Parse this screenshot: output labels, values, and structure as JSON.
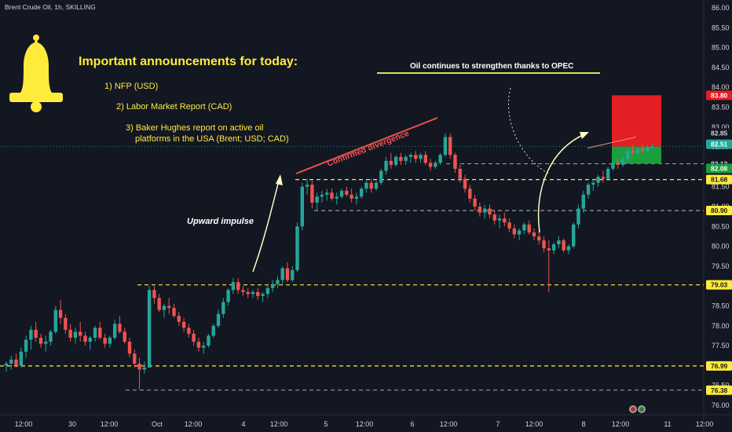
{
  "header": {
    "symbol_title": "Brent Crude Oil, 1h, SKILLING"
  },
  "announcements": {
    "heading": "Important announcements for today:",
    "items": [
      "1) NFP (USD)",
      "2) Labor Market Report (CAD)",
      "3) Baker Hughes report on active oil",
      "platforms in the USA (Brent; USD; CAD)"
    ]
  },
  "annotations": {
    "opec_note": "Oil continues to strengthen thanks to OPEC",
    "divergence_label": "Confirmed divergence",
    "impulse_label": "Upward impulse"
  },
  "colors": {
    "background": "#131722",
    "bull": "#26a69a",
    "bear": "#ef5350",
    "level_line": "#ffeb3b",
    "stop_zone": "#e31e24",
    "target_zone": "#1b9e3e",
    "bell": "#ffeb3b"
  },
  "chart_data": {
    "type": "candlestick",
    "title": "Brent Crude Oil, 1h, SKILLING",
    "ylim": [
      75.85,
      86.1
    ],
    "y_ticks": [
      "86.00",
      "85.50",
      "85.00",
      "84.50",
      "84.00",
      "83.50",
      "83.00",
      "82.50",
      "82.00",
      "81.50",
      "81.00",
      "80.50",
      "80.00",
      "79.50",
      "79.00",
      "78.50",
      "78.00",
      "77.50",
      "77.00",
      "76.50",
      "76.00"
    ],
    "x_ticks": [
      "12:00",
      "30",
      "12:00",
      "Oct",
      "12:00",
      "4",
      "12:00",
      "5",
      "12:00",
      "6",
      "12:00",
      "7",
      "12:00",
      "8",
      "12:00",
      "11",
      "12:00"
    ],
    "levels": [
      {
        "price": 82.08,
        "label": "82.08",
        "style": "dashed"
      },
      {
        "price": 81.68,
        "label": "81.68",
        "style": "dashed"
      },
      {
        "price": 80.9,
        "label": "80.90",
        "style": "dashed"
      },
      {
        "price": 79.03,
        "label": "79.03",
        "style": "dashed"
      },
      {
        "price": 76.99,
        "label": "76.99",
        "style": "dashed"
      },
      {
        "price": 76.38,
        "label": "76.38",
        "style": "dashed"
      }
    ],
    "price_badges": [
      {
        "price": 83.8,
        "label": "83.80",
        "kind": "stop"
      },
      {
        "price": 82.85,
        "label": "82.85",
        "kind": "plain"
      },
      {
        "price": 82.51,
        "label": "82.51",
        "kind": "current"
      },
      {
        "price": 82.12,
        "label": "82.12",
        "kind": "plain"
      },
      {
        "price": 82.08,
        "label": "82.08",
        "kind": "target"
      },
      {
        "price": 81.68,
        "label": "81.68",
        "kind": "level"
      },
      {
        "price": 80.9,
        "label": "80.90",
        "kind": "level"
      },
      {
        "price": 79.03,
        "label": "79.03",
        "kind": "level"
      },
      {
        "price": 76.99,
        "label": "76.99",
        "kind": "level"
      },
      {
        "price": 76.38,
        "label": "76.38",
        "kind": "level"
      }
    ],
    "position": {
      "entry": 82.51,
      "stop": 83.8,
      "target": 82.08
    },
    "candles": [
      [
        77.0,
        77.1,
        76.85,
        77.05
      ],
      [
        77.05,
        77.25,
        76.9,
        77.15
      ],
      [
        77.15,
        77.3,
        76.95,
        77.0
      ],
      [
        77.0,
        77.45,
        76.95,
        77.35
      ],
      [
        77.35,
        77.75,
        77.2,
        77.65
      ],
      [
        77.65,
        78.0,
        77.4,
        77.9
      ],
      [
        77.9,
        78.1,
        77.6,
        77.7
      ],
      [
        77.7,
        77.8,
        77.45,
        77.55
      ],
      [
        77.55,
        77.75,
        77.35,
        77.6
      ],
      [
        77.6,
        77.9,
        77.5,
        77.85
      ],
      [
        77.85,
        78.5,
        77.8,
        78.4
      ],
      [
        78.4,
        78.65,
        78.05,
        78.2
      ],
      [
        78.2,
        78.3,
        77.8,
        77.9
      ],
      [
        77.9,
        78.05,
        77.6,
        77.7
      ],
      [
        77.7,
        77.95,
        77.55,
        77.85
      ],
      [
        77.85,
        78.1,
        77.6,
        77.75
      ],
      [
        77.75,
        77.85,
        77.5,
        77.6
      ],
      [
        77.6,
        77.75,
        77.4,
        77.7
      ],
      [
        77.7,
        78.0,
        77.6,
        77.95
      ],
      [
        77.95,
        78.1,
        77.65,
        77.7
      ],
      [
        77.7,
        77.8,
        77.45,
        77.55
      ],
      [
        77.55,
        77.75,
        77.45,
        77.7
      ],
      [
        77.7,
        78.15,
        77.65,
        78.05
      ],
      [
        78.05,
        78.25,
        77.8,
        77.85
      ],
      [
        77.85,
        77.95,
        77.55,
        77.6
      ],
      [
        77.6,
        77.7,
        77.2,
        77.3
      ],
      [
        77.3,
        77.4,
        76.95,
        77.05
      ],
      [
        77.05,
        77.2,
        76.4,
        76.9
      ],
      [
        76.9,
        77.1,
        76.8,
        76.95
      ],
      [
        76.95,
        79.0,
        76.95,
        78.9
      ],
      [
        78.9,
        79.0,
        78.55,
        78.7
      ],
      [
        78.7,
        78.8,
        78.35,
        78.4
      ],
      [
        78.4,
        78.55,
        78.2,
        78.5
      ],
      [
        78.5,
        78.7,
        78.3,
        78.45
      ],
      [
        78.45,
        78.55,
        78.2,
        78.25
      ],
      [
        78.25,
        78.35,
        78.0,
        78.1
      ],
      [
        78.1,
        78.2,
        77.85,
        77.95
      ],
      [
        77.95,
        78.05,
        77.7,
        77.8
      ],
      [
        77.8,
        77.9,
        77.5,
        77.6
      ],
      [
        77.6,
        77.7,
        77.35,
        77.45
      ],
      [
        77.45,
        77.6,
        77.3,
        77.5
      ],
      [
        77.5,
        77.8,
        77.45,
        77.75
      ],
      [
        77.75,
        78.05,
        77.7,
        78.0
      ],
      [
        78.0,
        78.4,
        77.95,
        78.3
      ],
      [
        78.3,
        78.7,
        78.2,
        78.6
      ],
      [
        78.6,
        78.95,
        78.5,
        78.9
      ],
      [
        78.9,
        79.2,
        78.8,
        79.1
      ],
      [
        79.1,
        79.2,
        78.8,
        78.9
      ],
      [
        78.9,
        79.0,
        78.75,
        78.85
      ],
      [
        78.85,
        78.95,
        78.7,
        78.8
      ],
      [
        78.8,
        78.9,
        78.7,
        78.85
      ],
      [
        78.85,
        78.95,
        78.65,
        78.75
      ],
      [
        78.75,
        78.85,
        78.6,
        78.8
      ],
      [
        78.8,
        79.05,
        78.7,
        78.95
      ],
      [
        78.95,
        79.15,
        78.85,
        79.05
      ],
      [
        79.05,
        79.25,
        78.95,
        79.15
      ],
      [
        79.15,
        79.5,
        79.05,
        79.45
      ],
      [
        79.45,
        79.6,
        79.1,
        79.15
      ],
      [
        79.15,
        79.5,
        79.1,
        79.4
      ],
      [
        79.4,
        80.6,
        79.35,
        80.5
      ],
      [
        80.5,
        81.6,
        80.4,
        81.5
      ],
      [
        81.5,
        81.7,
        81.3,
        81.55
      ],
      [
        81.55,
        81.65,
        80.95,
        81.1
      ],
      [
        81.1,
        81.35,
        80.9,
        81.25
      ],
      [
        81.25,
        81.4,
        81.1,
        81.3
      ],
      [
        81.3,
        81.45,
        81.15,
        81.35
      ],
      [
        81.35,
        81.45,
        81.15,
        81.2
      ],
      [
        81.2,
        81.35,
        81.05,
        81.25
      ],
      [
        81.25,
        81.45,
        81.2,
        81.4
      ],
      [
        81.4,
        81.5,
        81.25,
        81.3
      ],
      [
        81.3,
        81.45,
        81.1,
        81.2
      ],
      [
        81.2,
        81.35,
        81.05,
        81.25
      ],
      [
        81.25,
        81.5,
        81.2,
        81.45
      ],
      [
        81.45,
        81.65,
        81.35,
        81.6
      ],
      [
        81.6,
        81.7,
        81.35,
        81.45
      ],
      [
        81.45,
        81.65,
        81.4,
        81.6
      ],
      [
        81.6,
        81.95,
        81.55,
        81.9
      ],
      [
        81.9,
        82.25,
        81.8,
        82.15
      ],
      [
        82.15,
        82.35,
        81.95,
        82.05
      ],
      [
        82.05,
        82.3,
        82.0,
        82.25
      ],
      [
        82.25,
        82.35,
        82.05,
        82.15
      ],
      [
        82.15,
        82.3,
        82.05,
        82.25
      ],
      [
        82.25,
        82.35,
        82.1,
        82.3
      ],
      [
        82.3,
        82.4,
        82.1,
        82.2
      ],
      [
        82.2,
        82.35,
        82.1,
        82.3
      ],
      [
        82.3,
        82.4,
        82.05,
        82.1
      ],
      [
        82.1,
        82.2,
        81.9,
        82.0
      ],
      [
        82.0,
        82.15,
        81.95,
        82.1
      ],
      [
        82.1,
        82.35,
        82.05,
        82.3
      ],
      [
        82.3,
        82.85,
        82.25,
        82.75
      ],
      [
        82.75,
        82.85,
        82.2,
        82.3
      ],
      [
        82.3,
        82.35,
        81.85,
        81.95
      ],
      [
        81.95,
        82.05,
        81.6,
        81.7
      ],
      [
        81.7,
        81.8,
        81.35,
        81.45
      ],
      [
        81.45,
        81.55,
        81.1,
        81.2
      ],
      [
        81.2,
        81.3,
        80.9,
        81.0
      ],
      [
        81.0,
        81.1,
        80.75,
        80.85
      ],
      [
        80.85,
        81.05,
        80.7,
        80.95
      ],
      [
        80.95,
        81.05,
        80.7,
        80.8
      ],
      [
        80.8,
        80.9,
        80.55,
        80.65
      ],
      [
        80.65,
        80.8,
        80.45,
        80.7
      ],
      [
        80.7,
        80.85,
        80.5,
        80.6
      ],
      [
        80.6,
        80.7,
        80.35,
        80.45
      ],
      [
        80.45,
        80.55,
        80.2,
        80.3
      ],
      [
        80.3,
        80.45,
        80.15,
        80.4
      ],
      [
        80.4,
        80.6,
        80.3,
        80.55
      ],
      [
        80.55,
        80.65,
        80.3,
        80.35
      ],
      [
        80.35,
        80.45,
        80.15,
        80.25
      ],
      [
        80.25,
        80.4,
        80.05,
        80.15
      ],
      [
        80.15,
        80.25,
        79.85,
        79.95
      ],
      [
        79.95,
        80.15,
        78.85,
        79.9
      ],
      [
        79.9,
        80.1,
        79.8,
        80.05
      ],
      [
        80.05,
        80.25,
        79.95,
        80.15
      ],
      [
        80.15,
        80.2,
        79.85,
        79.9
      ],
      [
        79.9,
        80.05,
        79.8,
        80.0
      ],
      [
        80.0,
        80.6,
        79.95,
        80.55
      ],
      [
        80.55,
        81.05,
        80.45,
        80.95
      ],
      [
        80.95,
        81.4,
        80.85,
        81.3
      ],
      [
        81.3,
        81.6,
        81.2,
        81.55
      ],
      [
        81.55,
        81.7,
        81.4,
        81.6
      ],
      [
        81.6,
        81.8,
        81.5,
        81.75
      ],
      [
        81.75,
        81.9,
        81.6,
        81.7
      ],
      [
        81.7,
        82.0,
        81.65,
        81.95
      ],
      [
        81.95,
        82.15,
        81.9,
        82.1
      ],
      [
        82.1,
        82.2,
        81.95,
        82.05
      ],
      [
        82.05,
        82.25,
        82.0,
        82.2
      ],
      [
        82.2,
        82.45,
        82.15,
        82.4
      ],
      [
        82.4,
        82.55,
        82.3,
        82.35
      ],
      [
        82.35,
        82.5,
        82.3,
        82.45
      ],
      [
        82.45,
        82.55,
        82.35,
        82.4
      ],
      [
        82.4,
        82.55,
        82.35,
        82.5
      ],
      [
        82.5,
        82.6,
        82.45,
        82.51
      ]
    ]
  }
}
